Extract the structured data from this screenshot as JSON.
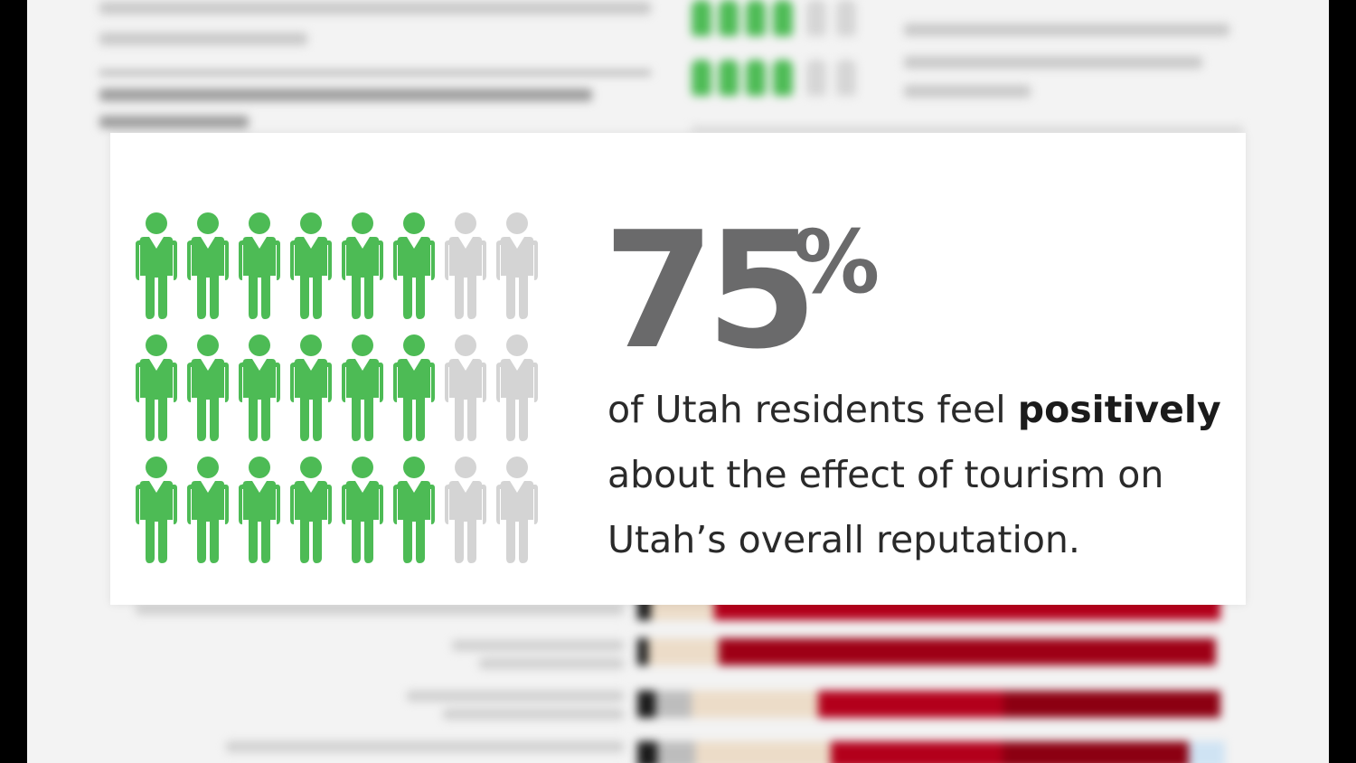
{
  "infographic": {
    "stat_value": "75",
    "stat_unit": "%",
    "statement": {
      "line1_plain": "of Utah residents feel ",
      "line1_bold": "positively",
      "line2": "about the effect of tourism on",
      "line3": "Utah’s overall reputation."
    },
    "pictogram": {
      "rows": 3,
      "columns": 8,
      "highlighted_per_row": 6,
      "highlight_color": "#4dbb55",
      "base_color": "#d4d4d4",
      "icon": "person-icon"
    }
  },
  "colors": {
    "stat_text": "#6a6a6b",
    "body_text": "#2a2a2a",
    "background_doc": "#f3f3f3",
    "bar_red": "#b3001b",
    "bar_dark_red": "#8c0012",
    "bar_tan": "#ecdcc8",
    "bar_black": "#1a1a1a"
  }
}
